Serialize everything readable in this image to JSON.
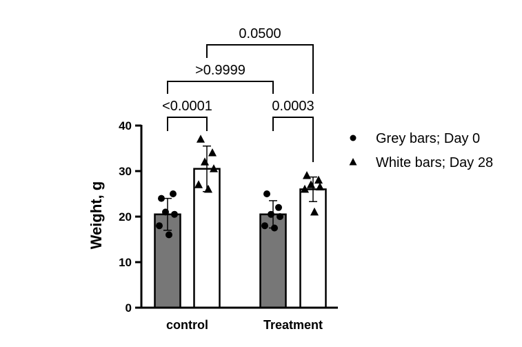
{
  "chart_data": {
    "type": "bar",
    "ylabel": "Weight, g",
    "xlabel": "",
    "ylim": [
      0,
      40
    ],
    "yticks": [
      0,
      10,
      20,
      30,
      40
    ],
    "categories": [
      "control",
      "Treatment"
    ],
    "series": [
      {
        "name": "Grey bars; Day 0",
        "marker": "circle",
        "fill": "#777777",
        "values": [
          20.5,
          20.5
        ],
        "errors": [
          3.5,
          3.0
        ],
        "points": [
          [
            24,
            25,
            21,
            20.5,
            18,
            16
          ],
          [
            25,
            22,
            20.5,
            20,
            18,
            17.5
          ]
        ]
      },
      {
        "name": "White bars; Day 28",
        "marker": "triangle",
        "fill": "#ffffff",
        "values": [
          30.5,
          26
        ],
        "errors": [
          5.0,
          2.7
        ],
        "points": [
          [
            37,
            34,
            32,
            30.5,
            27,
            26
          ],
          [
            29,
            28,
            27,
            26.5,
            26,
            21
          ]
        ]
      }
    ],
    "comparisons": [
      {
        "from": "control Day 0",
        "to": "control Day 28",
        "label": "<0.0001"
      },
      {
        "from": "Treatment Day 0",
        "to": "Treatment Day 28",
        "label": "0.0003"
      },
      {
        "from": "control Day 0",
        "to": "Treatment Day 0",
        "label": ">0.9999"
      },
      {
        "from": "control Day 28",
        "to": "Treatment Day 28",
        "label": "0.0500"
      }
    ],
    "legend_position": "right",
    "grid": false
  }
}
